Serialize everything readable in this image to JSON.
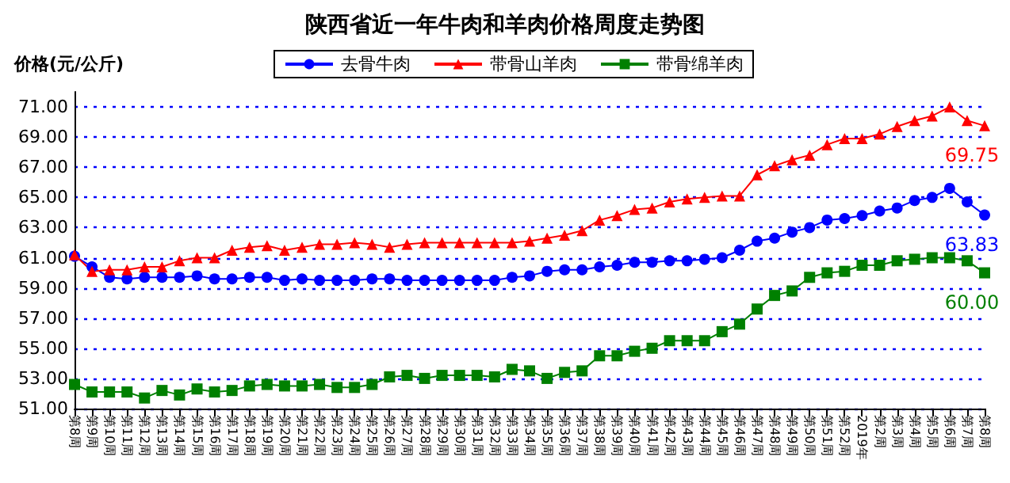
{
  "chart_data": {
    "type": "line",
    "title": "陕西省近一年牛肉和羊肉价格周度走势图",
    "ylabel": "价格(元/公斤)",
    "categories": [
      "第8周",
      "第9周",
      "第10周",
      "第11周",
      "第12周",
      "第13周",
      "第14周",
      "第15周",
      "第16周",
      "第17周",
      "第18周",
      "第19周",
      "第20周",
      "第21周",
      "第22周",
      "第23周",
      "第24周",
      "第25周",
      "第26周",
      "第27周",
      "第28周",
      "第29周",
      "第30周",
      "第31周",
      "第32周",
      "第33周",
      "第34周",
      "第35周",
      "第36周",
      "第37周",
      "第38周",
      "第39周",
      "第40周",
      "第41周",
      "第42周",
      "第43周",
      "第44周",
      "第45周",
      "第46周",
      "第47周",
      "第48周",
      "第49周",
      "第50周",
      "第51周",
      "第52周",
      "2019年",
      "第2周",
      "第3周",
      "第4周",
      "第5周",
      "第6周",
      "第7周",
      "第8周"
    ],
    "series": [
      {
        "name": "去骨牛肉",
        "color": "#0000ff",
        "marker": "circle",
        "values": [
          61.1,
          60.4,
          59.7,
          59.6,
          59.7,
          59.7,
          59.7,
          59.8,
          59.6,
          59.6,
          59.7,
          59.7,
          59.5,
          59.6,
          59.5,
          59.5,
          59.5,
          59.6,
          59.6,
          59.5,
          59.5,
          59.5,
          59.5,
          59.5,
          59.5,
          59.7,
          59.8,
          60.1,
          60.2,
          60.2,
          60.4,
          60.5,
          60.7,
          60.7,
          60.8,
          60.8,
          60.9,
          61.0,
          61.5,
          62.1,
          62.3,
          62.7,
          63.0,
          63.5,
          63.6,
          63.8,
          64.1,
          64.3,
          64.8,
          65.0,
          65.6,
          64.7,
          63.83
        ],
        "value_labels": [
          null,
          null,
          null,
          null,
          null,
          null,
          null,
          null,
          null,
          null,
          null,
          null,
          null,
          null,
          null,
          null,
          null,
          null,
          null,
          null,
          null,
          null,
          null,
          null,
          null,
          null,
          null,
          null,
          null,
          null,
          null,
          null,
          null,
          null,
          null,
          null,
          null,
          null,
          null,
          null,
          null,
          null,
          null,
          null,
          null,
          null,
          null,
          null,
          null,
          null,
          null,
          null,
          "63.83"
        ]
      },
      {
        "name": "带骨山羊肉",
        "color": "#ff0000",
        "marker": "triangle",
        "values": [
          61.2,
          60.1,
          60.2,
          60.2,
          60.4,
          60.4,
          60.8,
          61.0,
          61.0,
          61.5,
          61.7,
          61.8,
          61.5,
          61.7,
          61.9,
          61.9,
          62.0,
          61.9,
          61.7,
          61.9,
          62.0,
          62.0,
          62.0,
          62.0,
          62.0,
          62.0,
          62.1,
          62.3,
          62.5,
          62.8,
          63.5,
          63.8,
          64.2,
          64.3,
          64.7,
          64.9,
          65.0,
          65.1,
          65.1,
          66.5,
          67.1,
          67.5,
          67.8,
          68.5,
          68.9,
          68.9,
          69.2,
          69.7,
          70.1,
          70.4,
          71.0,
          70.1,
          69.75
        ],
        "value_labels": [
          null,
          null,
          null,
          null,
          null,
          null,
          null,
          null,
          null,
          null,
          null,
          null,
          null,
          null,
          null,
          null,
          null,
          null,
          null,
          null,
          null,
          null,
          null,
          null,
          null,
          null,
          null,
          null,
          null,
          null,
          null,
          null,
          null,
          null,
          null,
          null,
          null,
          null,
          null,
          null,
          null,
          null,
          null,
          null,
          null,
          null,
          null,
          null,
          null,
          null,
          null,
          null,
          "69.75"
        ]
      },
      {
        "name": "带骨绵羊肉",
        "color": "#008000",
        "marker": "square",
        "values": [
          52.6,
          52.1,
          52.1,
          52.1,
          51.7,
          52.2,
          51.9,
          52.3,
          52.1,
          52.2,
          52.5,
          52.6,
          52.5,
          52.5,
          52.6,
          52.4,
          52.4,
          52.6,
          53.1,
          53.2,
          53.0,
          53.2,
          53.2,
          53.2,
          53.1,
          53.6,
          53.5,
          53.0,
          53.4,
          53.5,
          54.5,
          54.5,
          54.8,
          55.0,
          55.5,
          55.5,
          55.5,
          56.1,
          56.6,
          57.6,
          58.5,
          58.8,
          59.7,
          60.0,
          60.1,
          60.5,
          60.5,
          60.8,
          60.9,
          61.0,
          61.0,
          60.8,
          60.0
        ],
        "value_labels": [
          null,
          null,
          null,
          null,
          null,
          null,
          null,
          null,
          null,
          null,
          null,
          null,
          null,
          null,
          null,
          null,
          null,
          null,
          null,
          null,
          null,
          null,
          null,
          null,
          null,
          null,
          null,
          null,
          null,
          null,
          null,
          null,
          null,
          null,
          null,
          null,
          null,
          null,
          null,
          null,
          null,
          null,
          null,
          null,
          null,
          null,
          null,
          null,
          null,
          null,
          null,
          null,
          "60.00"
        ]
      }
    ],
    "ylim": [
      51,
      72
    ],
    "yticks": [
      {
        "value": 51,
        "label": "51.00"
      },
      {
        "value": 53,
        "label": "53.00"
      },
      {
        "value": 55,
        "label": "55.00"
      },
      {
        "value": 57,
        "label": "57.00"
      },
      {
        "value": 59,
        "label": "59.00"
      },
      {
        "value": 61,
        "label": "61.00"
      },
      {
        "value": 63,
        "label": "63.00"
      },
      {
        "value": 65,
        "label": "65.00"
      },
      {
        "value": 67,
        "label": "67.00"
      },
      {
        "value": 69,
        "label": "69.00"
      },
      {
        "value": 71,
        "label": "71.00"
      }
    ],
    "grid": "y",
    "legend": "top right"
  }
}
